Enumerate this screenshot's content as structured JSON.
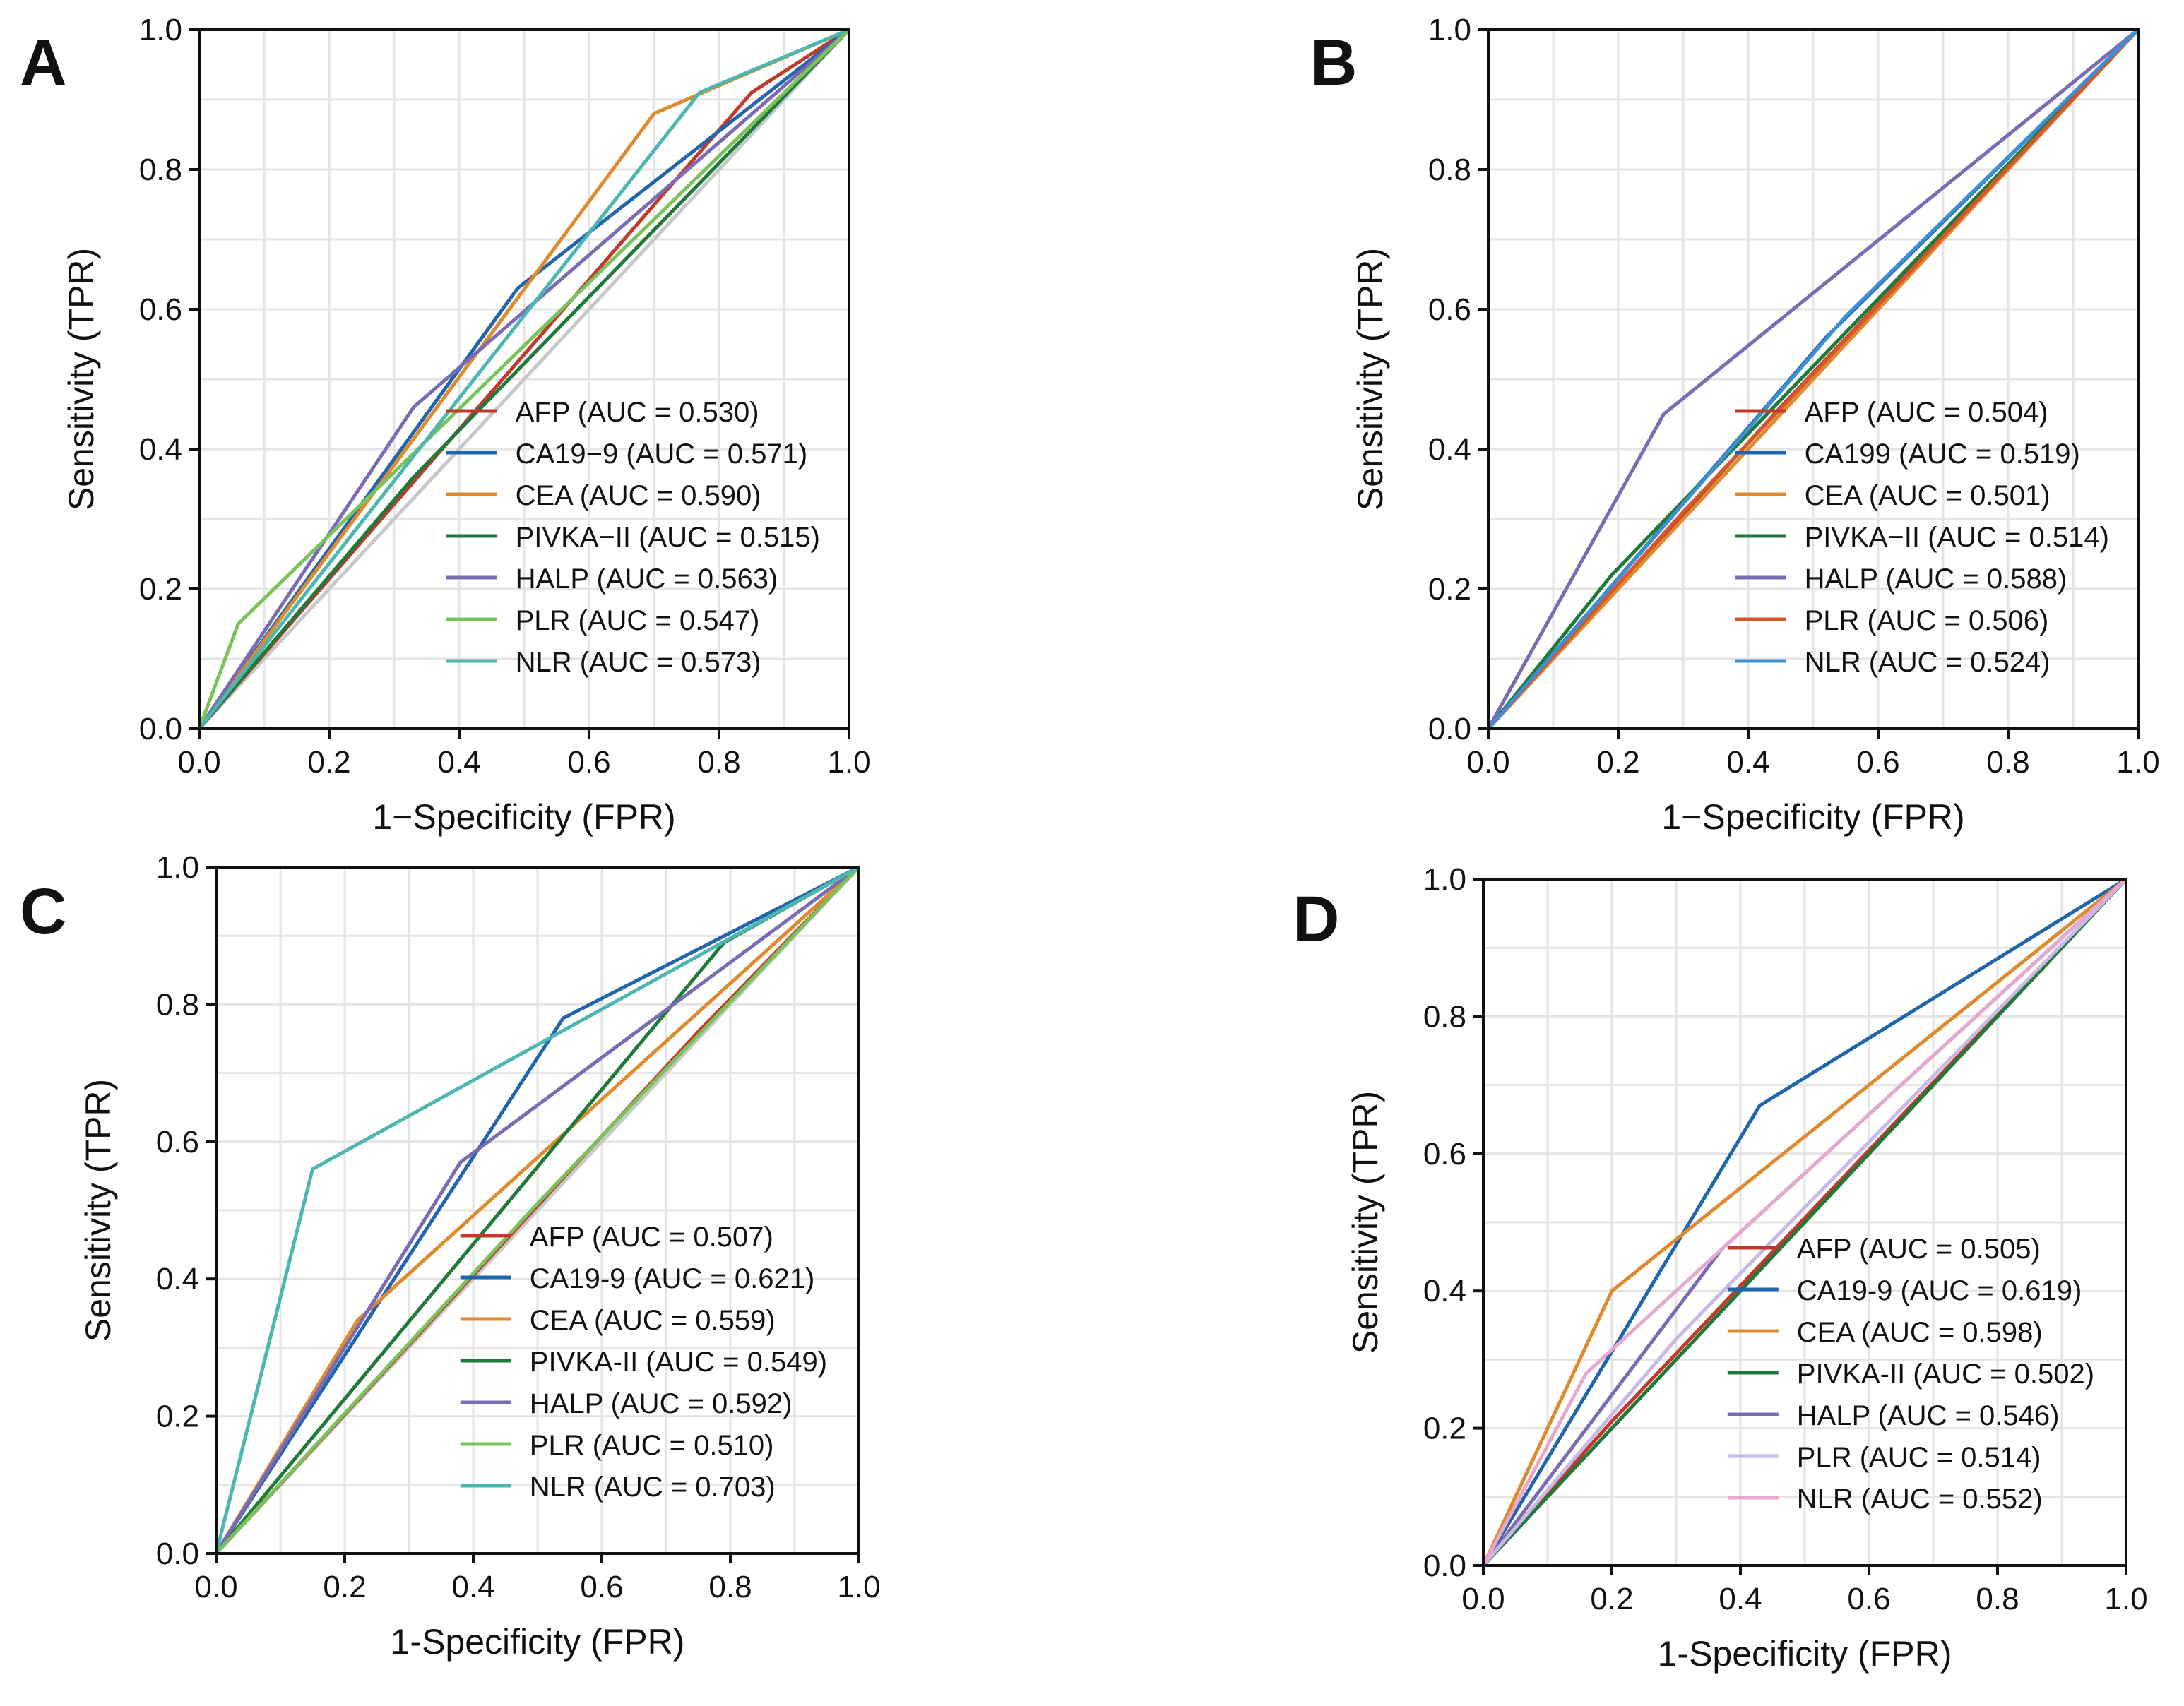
{
  "figure": {
    "reference_line_color": "#c8c8c8",
    "grid_color": "#e4e4e4"
  },
  "chart_data": [
    {
      "panel": "A",
      "type": "line",
      "subtype": "roc",
      "xlabel": "1−Specificity (FPR)",
      "ylabel": "Sensitivity (TPR)",
      "xlim": [
        0,
        1
      ],
      "ylim": [
        0,
        1
      ],
      "xticks": [
        "0.0",
        "0.2",
        "0.4",
        "0.6",
        "0.8",
        "1.0"
      ],
      "yticks": [
        "0.0",
        "0.2",
        "0.4",
        "0.6",
        "0.8",
        "1.0"
      ],
      "grid": true,
      "legend_position": "bottom-right",
      "series": [
        {
          "name": "AFP",
          "label": "AFP (AUC = 0.530)",
          "auc": 0.53,
          "color": "#c0392b",
          "x": [
            0,
            0.85,
            1
          ],
          "y": [
            0,
            0.91,
            1
          ]
        },
        {
          "name": "CA19-9",
          "label": "CA19−9 (AUC = 0.571)",
          "auc": 0.571,
          "color": "#2166ac",
          "x": [
            0,
            0.49,
            1
          ],
          "y": [
            0,
            0.63,
            1
          ]
        },
        {
          "name": "CEA",
          "label": "CEA (AUC = 0.590)",
          "auc": 0.59,
          "color": "#e08a2e",
          "x": [
            0,
            0.7,
            1
          ],
          "y": [
            0,
            0.88,
            1
          ]
        },
        {
          "name": "PIVKA-II",
          "label": "PIVKA−II (AUC = 0.515)",
          "auc": 0.515,
          "color": "#1f7a3a",
          "x": [
            0,
            0.33,
            1
          ],
          "y": [
            0,
            0.36,
            1
          ]
        },
        {
          "name": "HALP",
          "label": "HALP (AUC = 0.563)",
          "auc": 0.563,
          "color": "#7b6bb5",
          "x": [
            0,
            0.33,
            1
          ],
          "y": [
            0,
            0.46,
            1
          ]
        },
        {
          "name": "PLR",
          "label": "PLR (AUC = 0.547)",
          "auc": 0.547,
          "color": "#7ac35a",
          "x": [
            0,
            0.06,
            1
          ],
          "y": [
            0,
            0.15,
            1
          ]
        },
        {
          "name": "NLR",
          "label": "NLR (AUC = 0.573)",
          "auc": 0.573,
          "color": "#4db6b0",
          "x": [
            0,
            0.77,
            1
          ],
          "y": [
            0,
            0.91,
            1
          ]
        }
      ]
    },
    {
      "panel": "B",
      "type": "line",
      "subtype": "roc",
      "xlabel": "1−Specificity (FPR)",
      "ylabel": "Sensitivity (TPR)",
      "xlim": [
        0,
        1
      ],
      "ylim": [
        0,
        1
      ],
      "xticks": [
        "0.0",
        "0.2",
        "0.4",
        "0.6",
        "0.8",
        "1.0"
      ],
      "yticks": [
        "0.0",
        "0.2",
        "0.4",
        "0.6",
        "0.8",
        "1.0"
      ],
      "grid": true,
      "legend_position": "bottom-right",
      "series": [
        {
          "name": "AFP",
          "label": "AFP (AUC = 0.504)",
          "auc": 0.504,
          "color": "#c0392b",
          "x": [
            0,
            0.45,
            1
          ],
          "y": [
            0,
            0.46,
            1
          ]
        },
        {
          "name": "CA199",
          "label": "CA199 (AUC = 0.519)",
          "auc": 0.519,
          "color": "#2166ac",
          "x": [
            0,
            0.52,
            1
          ],
          "y": [
            0,
            0.56,
            1
          ]
        },
        {
          "name": "CEA",
          "label": "CEA (AUC = 0.501)",
          "auc": 0.501,
          "color": "#e08a2e",
          "x": [
            0,
            0.5,
            1
          ],
          "y": [
            0,
            0.5,
            1
          ]
        },
        {
          "name": "PIVKA-II",
          "label": "PIVKA−II (AUC = 0.514)",
          "auc": 0.514,
          "color": "#1f7a3a",
          "x": [
            0,
            0.19,
            1
          ],
          "y": [
            0,
            0.22,
            1
          ]
        },
        {
          "name": "HALP",
          "label": "HALP (AUC = 0.588)",
          "auc": 0.588,
          "color": "#7b6bb5",
          "x": [
            0,
            0.27,
            1
          ],
          "y": [
            0,
            0.45,
            1
          ]
        },
        {
          "name": "PLR",
          "label": "PLR (AUC = 0.506)",
          "auc": 0.506,
          "color": "#d8572a",
          "x": [
            0,
            0.3,
            1
          ],
          "y": [
            0,
            0.31,
            1
          ]
        },
        {
          "name": "NLR",
          "label": "NLR (AUC = 0.524)",
          "auc": 0.524,
          "color": "#3c8fd4",
          "x": [
            0,
            0.55,
            1
          ],
          "y": [
            0,
            0.59,
            1
          ]
        }
      ]
    },
    {
      "panel": "C",
      "type": "line",
      "subtype": "roc",
      "xlabel": "1-Specificity (FPR)",
      "ylabel": "Sensitivity (TPR)",
      "xlim": [
        0,
        1
      ],
      "ylim": [
        0,
        1
      ],
      "xticks": [
        "0.0",
        "0.2",
        "0.4",
        "0.6",
        "0.8",
        "1.0"
      ],
      "yticks": [
        "0.0",
        "0.2",
        "0.4",
        "0.6",
        "0.8",
        "1.0"
      ],
      "grid": true,
      "legend_position": "bottom-right",
      "series": [
        {
          "name": "AFP",
          "label": "AFP (AUC = 0.507)",
          "auc": 0.507,
          "color": "#c0392b",
          "x": [
            0,
            0.75,
            1
          ],
          "y": [
            0,
            0.76,
            1
          ]
        },
        {
          "name": "CA19-9",
          "label": "CA19-9 (AUC = 0.621)",
          "auc": 0.621,
          "color": "#2166ac",
          "x": [
            0,
            0.54,
            1
          ],
          "y": [
            0,
            0.78,
            1
          ]
        },
        {
          "name": "CEA",
          "label": "CEA (AUC = 0.559)",
          "auc": 0.559,
          "color": "#e08a2e",
          "x": [
            0,
            0.22,
            1
          ],
          "y": [
            0,
            0.34,
            1
          ]
        },
        {
          "name": "PIVKA-II",
          "label": "PIVKA-II (AUC = 0.549)",
          "auc": 0.549,
          "color": "#1f7a3a",
          "x": [
            0,
            0.79,
            1
          ],
          "y": [
            0,
            0.89,
            1
          ]
        },
        {
          "name": "HALP",
          "label": "HALP (AUC = 0.592)",
          "auc": 0.592,
          "color": "#7b6bb5",
          "x": [
            0,
            0.38,
            1
          ],
          "y": [
            0,
            0.57,
            1
          ]
        },
        {
          "name": "PLR",
          "label": "PLR (AUC = 0.510)",
          "auc": 0.51,
          "color": "#7ac35a",
          "x": [
            0,
            0.5,
            1
          ],
          "y": [
            0,
            0.51,
            1
          ]
        },
        {
          "name": "NLR",
          "label": "NLR (AUC = 0.703)",
          "auc": 0.703,
          "color": "#4db6b0",
          "x": [
            0,
            0.15,
            1
          ],
          "y": [
            0,
            0.56,
            1
          ]
        }
      ]
    },
    {
      "panel": "D",
      "type": "line",
      "subtype": "roc",
      "xlabel": "1-Specificity (FPR)",
      "ylabel": "Sensitivity (TPR)",
      "xlim": [
        0,
        1
      ],
      "ylim": [
        0,
        1
      ],
      "xticks": [
        "0.0",
        "0.2",
        "0.4",
        "0.6",
        "0.8",
        "1.0"
      ],
      "yticks": [
        "0.0",
        "0.2",
        "0.4",
        "0.6",
        "0.8",
        "1.0"
      ],
      "grid": true,
      "legend_position": "bottom-right",
      "series": [
        {
          "name": "AFP",
          "label": "AFP (AUC = 0.505)",
          "auc": 0.505,
          "color": "#c0392b",
          "x": [
            0,
            0.2,
            1
          ],
          "y": [
            0,
            0.21,
            1
          ]
        },
        {
          "name": "CA19-9",
          "label": "CA19-9 (AUC = 0.619)",
          "auc": 0.619,
          "color": "#2166ac",
          "x": [
            0,
            0.43,
            1
          ],
          "y": [
            0,
            0.67,
            1
          ]
        },
        {
          "name": "CEA",
          "label": "CEA (AUC = 0.598)",
          "auc": 0.598,
          "color": "#e08a2e",
          "x": [
            0,
            0.2,
            1
          ],
          "y": [
            0,
            0.4,
            1
          ]
        },
        {
          "name": "PIVKA-II",
          "label": "PIVKA-II (AUC = 0.502)",
          "auc": 0.502,
          "color": "#1f7a3a",
          "x": [
            0,
            0.5,
            1
          ],
          "y": [
            0,
            0.5,
            1
          ]
        },
        {
          "name": "HALP",
          "label": "HALP (AUC = 0.546)",
          "auc": 0.546,
          "color": "#7b6bb5",
          "x": [
            0,
            0.37,
            1
          ],
          "y": [
            0,
            0.46,
            1
          ]
        },
        {
          "name": "PLR",
          "label": "PLR (AUC = 0.514)",
          "auc": 0.514,
          "color": "#c9b8e8",
          "x": [
            0,
            0.3,
            1
          ],
          "y": [
            0,
            0.33,
            1
          ]
        },
        {
          "name": "NLR",
          "label": "NLR (AUC = 0.552)",
          "auc": 0.552,
          "color": "#e7a8d0",
          "x": [
            0,
            0.16,
            1
          ],
          "y": [
            0,
            0.28,
            1
          ]
        }
      ]
    }
  ]
}
